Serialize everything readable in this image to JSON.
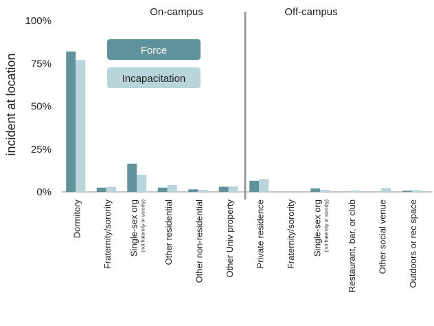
{
  "chart_data": {
    "type": "bar",
    "ylabel": "incident at location",
    "ylim": [
      0,
      100
    ],
    "yticks": [
      "0%",
      "25%",
      "50%",
      "75%",
      "100%"
    ],
    "groups": [
      {
        "label": "On-campus",
        "count": 6
      },
      {
        "label": "Off-campus",
        "count": 6
      }
    ],
    "categories": [
      {
        "label": "Dormitory",
        "note": ""
      },
      {
        "label": "Fraternity/sorority",
        "note": ""
      },
      {
        "label": "Single-sex org",
        "note": "(not fraternity or sorority)"
      },
      {
        "label": "Other residential",
        "note": ""
      },
      {
        "label": "Other non-residential",
        "note": ""
      },
      {
        "label": "Other Univ property",
        "note": ""
      },
      {
        "label": "Private residence",
        "note": ""
      },
      {
        "label": "Fraternity/sorority",
        "note": ""
      },
      {
        "label": "Single-sex org",
        "note": "(not fraternity or sorority)"
      },
      {
        "label": "Restaurant, bar, or club",
        "note": ""
      },
      {
        "label": "Other social venue",
        "note": ""
      },
      {
        "label": "Outdoors or rec space",
        "note": ""
      }
    ],
    "series": [
      {
        "name": "Force",
        "color": "#5f929c",
        "values": [
          82,
          2.5,
          16.5,
          2.5,
          1.5,
          3,
          6.5,
          0,
          2,
          0,
          0,
          0.7
        ]
      },
      {
        "name": "Incapacitation",
        "color": "#b9d5dc",
        "values": [
          77,
          3,
          10,
          4,
          1.2,
          3.2,
          7.5,
          0,
          1.2,
          0.8,
          2.3,
          1
        ]
      }
    ],
    "legend": "inside top-left",
    "grid": false
  }
}
